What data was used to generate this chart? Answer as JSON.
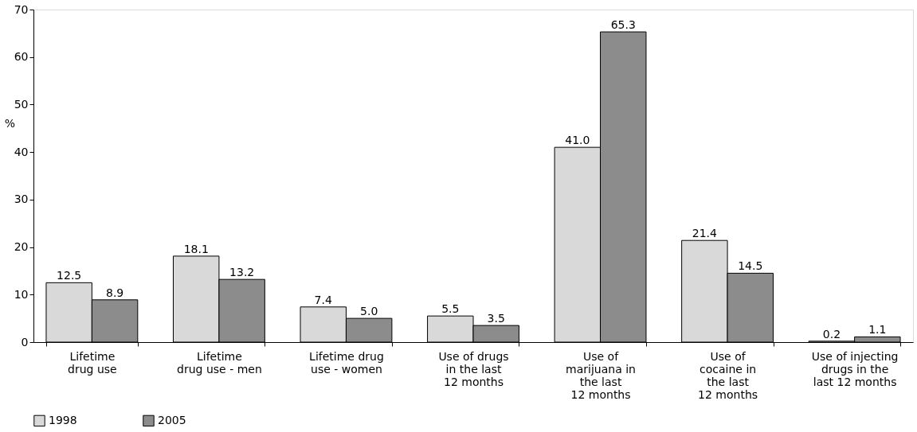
{
  "chart_data": {
    "type": "bar",
    "ylabel": "%",
    "categories": [
      "Lifetime\ndrug use",
      "Lifetime\ndrug use - men",
      "Lifetime drug\nuse - women",
      "Use of drugs\nin the last\n12 months",
      "Use of\nmarijuana in\nthe last\n12 months",
      "Use of\ncocaine in\nthe last\n12 months",
      "Use of injecting\ndrugs in the\nlast 12 months"
    ],
    "series": [
      {
        "name": "1998",
        "color": "#d9d9d9",
        "values": [
          12.5,
          18.1,
          7.4,
          5.5,
          41.0,
          21.4,
          0.2
        ],
        "value_labels": [
          "12.5",
          "18.1",
          "7.4",
          "5.5",
          "41.0",
          "21.4",
          "0.2"
        ]
      },
      {
        "name": "2005",
        "color": "#8c8c8c",
        "values": [
          8.9,
          13.2,
          5.0,
          3.5,
          65.3,
          14.5,
          1.1
        ],
        "value_labels": [
          "8.9",
          "13.2",
          "5.0",
          "3.5",
          "65.3",
          "14.5",
          "1.1"
        ]
      }
    ],
    "ylim": [
      0,
      70
    ],
    "yticks": [
      0,
      10,
      20,
      30,
      40,
      50,
      60,
      70
    ],
    "grid": false,
    "legend": "bottom"
  }
}
